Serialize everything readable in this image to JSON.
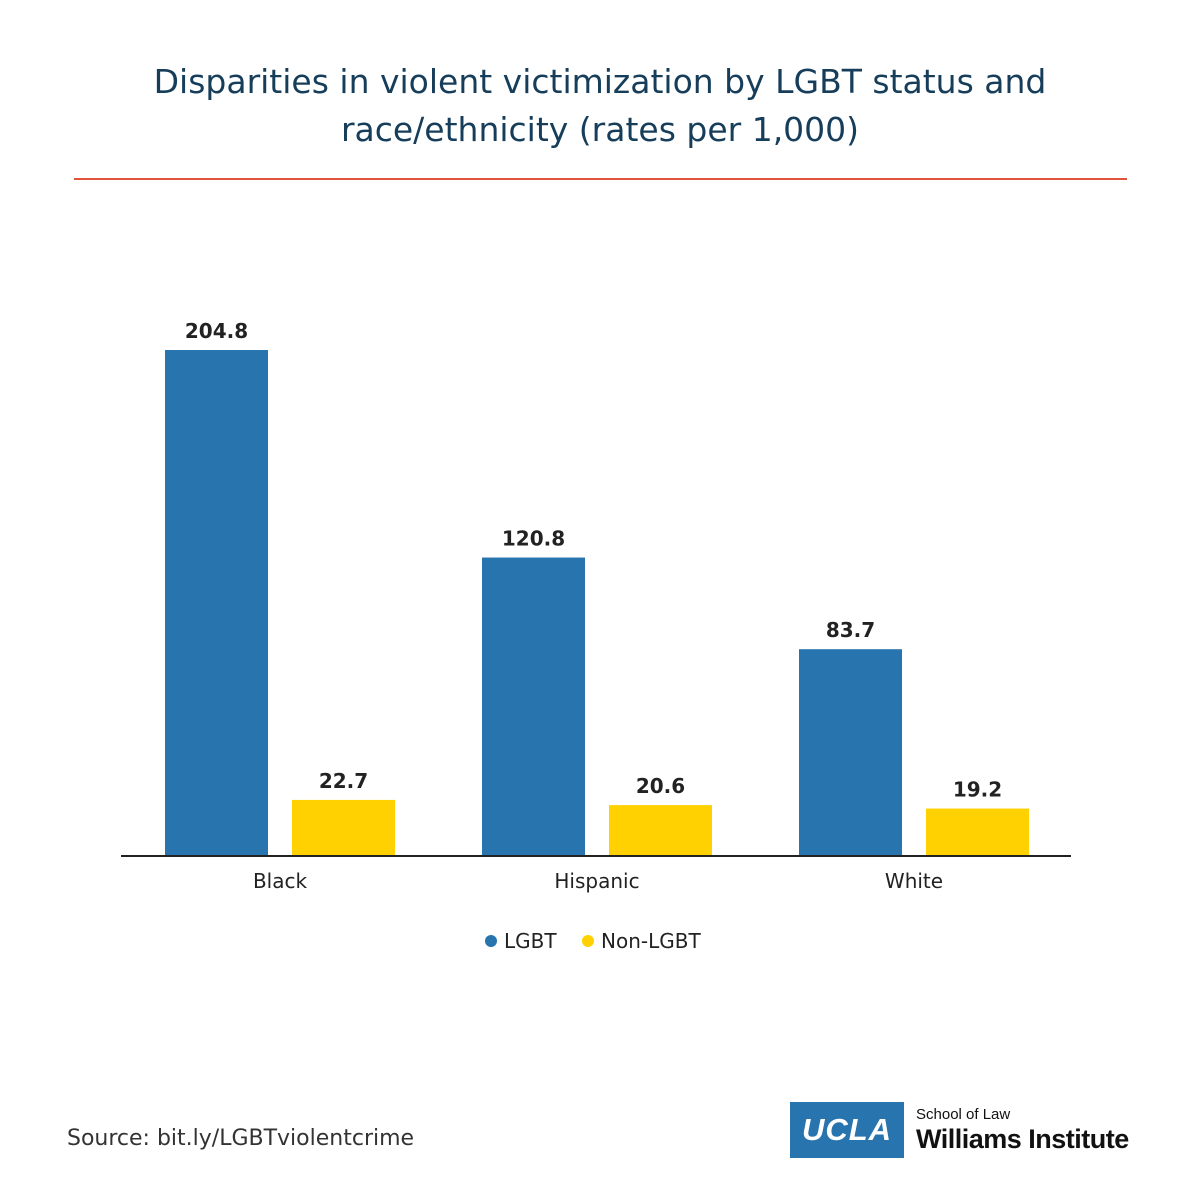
{
  "chart_data": {
    "type": "bar",
    "title": "Disparities in violent victimization by LGBT status and race/ethnicity (rates per 1,000)",
    "categories": [
      "Black",
      "Hispanic",
      "White"
    ],
    "series": [
      {
        "name": "LGBT",
        "color": "#2874ae",
        "values": [
          204.8,
          120.8,
          83.7
        ]
      },
      {
        "name": "Non-LGBT",
        "color": "#ffd100",
        "values": [
          22.7,
          20.6,
          19.2
        ]
      }
    ],
    "value_labels": [
      [
        "204.8",
        "120.8",
        "83.7"
      ],
      [
        "22.7",
        "20.6",
        "19.2"
      ]
    ],
    "xlabel": "",
    "ylabel": "",
    "ylim": [
      0,
      204.8
    ],
    "grid": false,
    "legend": "bottom-center"
  },
  "source": "Source: bit.ly/LGBTviolentcrime",
  "logo": {
    "box_text": "UCLA",
    "sub_text": "School of Law",
    "main_text": "Williams Institute",
    "color": "#2774ae"
  }
}
